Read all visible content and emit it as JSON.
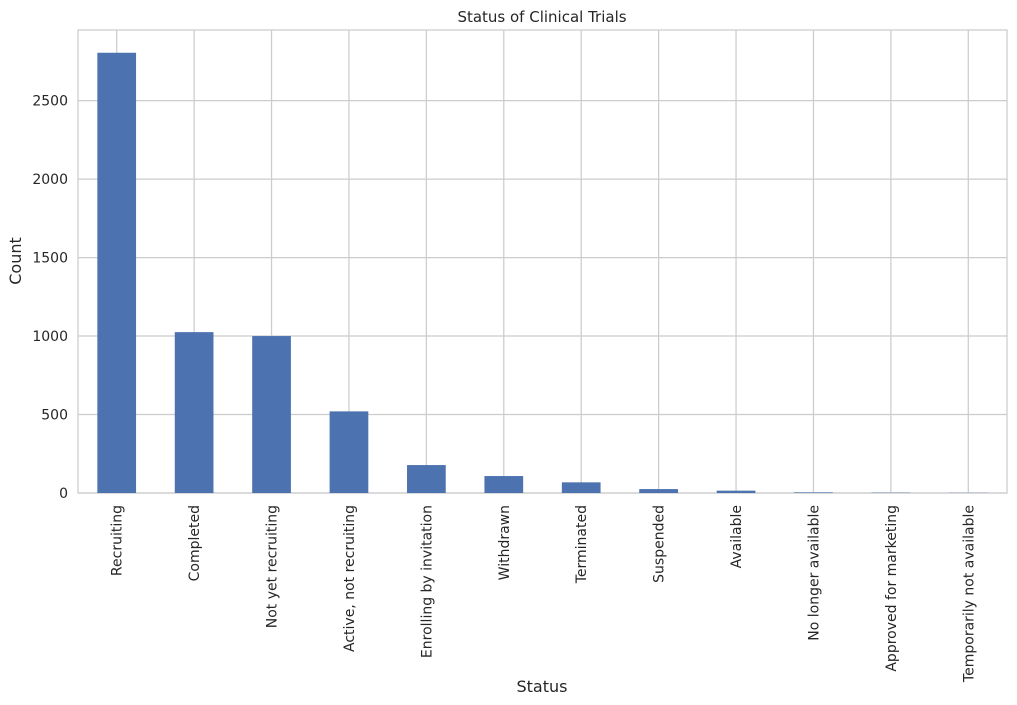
{
  "chart_data": {
    "type": "bar",
    "title": "Status of Clinical Trials",
    "xlabel": "Status",
    "ylabel": "Count",
    "categories": [
      "Recruiting",
      "Completed",
      "Not yet recruiting",
      "Active, not recruiting",
      "Enrolling by invitation",
      "Withdrawn",
      "Terminated",
      "Suspended",
      "Available",
      "No longer available",
      "Approved for marketing",
      "Temporarily not available"
    ],
    "values": [
      2805,
      1025,
      1000,
      520,
      178,
      108,
      68,
      25,
      15,
      4,
      2,
      1
    ],
    "yticks": [
      0,
      500,
      1000,
      1500,
      2000,
      2500
    ],
    "ylim": [
      0,
      2950
    ],
    "grid": true,
    "bar_color": "#4c72b0",
    "grid_color": "#cccccc",
    "background_color": "#ffffff"
  }
}
